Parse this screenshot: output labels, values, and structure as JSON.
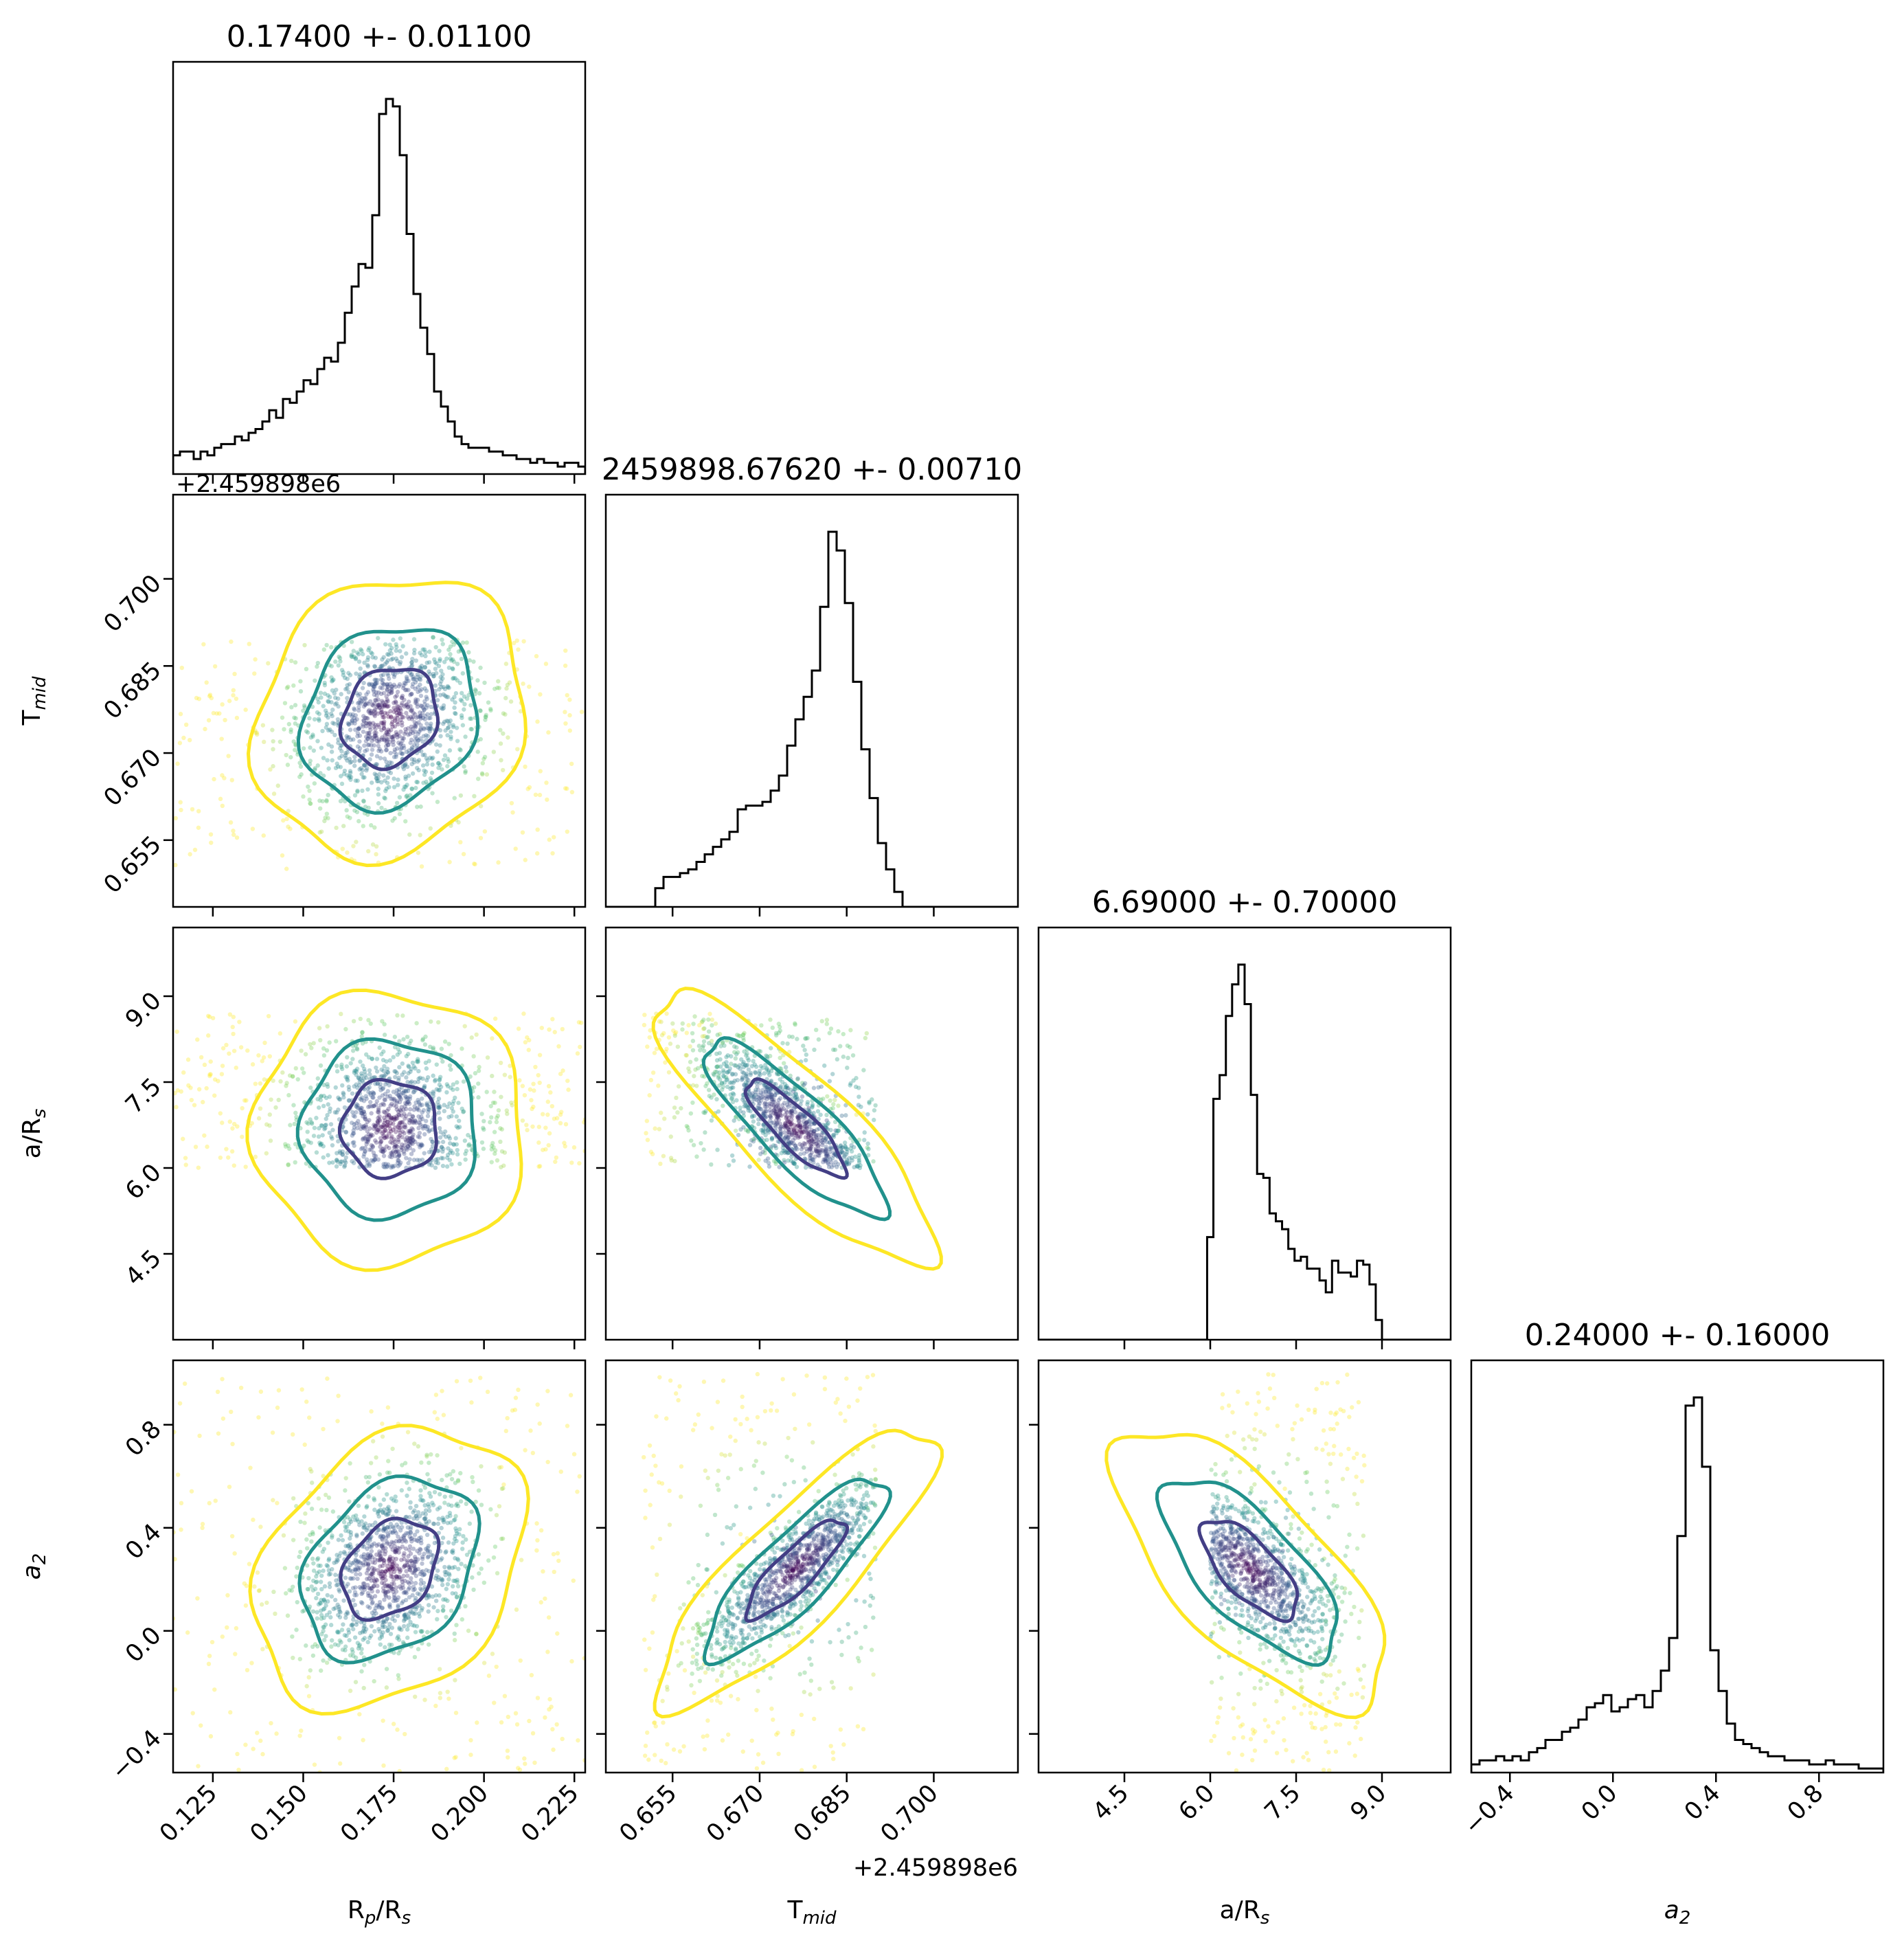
{
  "chart_data": {
    "type": "scatter",
    "subtype": "corner-plot",
    "parameters": [
      {
        "key": "rp",
        "label": "R",
        "label_sub": "p",
        "label_tail": "/R",
        "label_sub2": "s",
        "range": [
          0.114,
          0.228
        ],
        "ticks": [
          0.125,
          0.15,
          0.175,
          0.2,
          0.225
        ],
        "tick_labels": [
          "0.125",
          "0.150",
          "0.175",
          "0.200",
          "0.225"
        ],
        "title": "0.17400 +- 0.01100",
        "median": 0.174,
        "sigma": 0.011
      },
      {
        "key": "tmid",
        "label": "T",
        "label_sub": "mid",
        "label_tail": "",
        "label_sub2": "",
        "range": [
          0.6435,
          0.7145
        ],
        "ticks": [
          0.655,
          0.67,
          0.685,
          0.7
        ],
        "tick_labels": [
          "0.655",
          "0.670",
          "0.685",
          "0.700"
        ],
        "title": "2459898.67620 +- 0.00710",
        "median": 0.6762,
        "sigma": 0.0071,
        "offset_text": "+2.459898e6"
      },
      {
        "key": "ars",
        "label": "a/R",
        "label_sub": "s",
        "label_tail": "",
        "label_sub2": "",
        "range": [
          3.0,
          10.2
        ],
        "ticks": [
          4.5,
          6.0,
          7.5,
          9.0
        ],
        "tick_labels": [
          "4.5",
          "6.0",
          "7.5",
          "9.0"
        ],
        "title": "6.69000 +- 0.70000",
        "median": 6.69,
        "sigma": 0.7
      },
      {
        "key": "a2",
        "label": "a",
        "label_sub": "2",
        "label_tail": "",
        "label_sub2": "",
        "label_italic": true,
        "range": [
          -0.55,
          1.05
        ],
        "ticks": [
          -0.4,
          0.0,
          0.4,
          0.8
        ],
        "tick_labels": [
          "−0.4",
          "0.0",
          "0.4",
          "0.8"
        ],
        "title": "0.24000 +- 0.16000",
        "median": 0.24,
        "sigma": 0.16
      }
    ],
    "histograms": {
      "rp": {
        "bins": [
          0.114,
          0.228
        ],
        "counts": [
          5,
          6,
          6,
          4,
          6,
          5,
          7,
          8,
          8,
          10,
          9,
          11,
          12,
          14,
          17,
          15,
          20,
          19,
          22,
          25,
          24,
          28,
          31,
          30,
          35,
          43,
          50,
          56,
          55,
          69,
          96,
          100,
          98,
          85,
          64,
          48,
          39,
          32,
          22,
          18,
          14,
          10,
          8,
          7,
          7,
          7,
          6,
          6,
          5,
          5,
          4,
          4,
          3,
          4,
          3,
          3,
          2,
          3,
          3,
          2
        ]
      },
      "tmid": {
        "bins": [
          0.6435,
          0.7145
        ],
        "counts": [
          0,
          0,
          0,
          0,
          0,
          0,
          5,
          8,
          8,
          9,
          10,
          12,
          14,
          16,
          18,
          20,
          26,
          27,
          27,
          28,
          31,
          35,
          43,
          50,
          56,
          63,
          80,
          100,
          95,
          81,
          60,
          42,
          29,
          17,
          10,
          4,
          0,
          0,
          0,
          0,
          0,
          0,
          0,
          0,
          0,
          0,
          0,
          0,
          0,
          0
        ]
      },
      "ars": {
        "bins": [
          3.0,
          10.2
        ],
        "counts": [
          0,
          0,
          0,
          0,
          0,
          0,
          0,
          0,
          0,
          0,
          0,
          0,
          0,
          0,
          0,
          0,
          0,
          0,
          0,
          0,
          0,
          0,
          0,
          0,
          0,
          0,
          0,
          26,
          61,
          67,
          82,
          90,
          95,
          85,
          62,
          42,
          41,
          32,
          30,
          28,
          23,
          20,
          21,
          18,
          18,
          15,
          12,
          20,
          17,
          17,
          16,
          20,
          19,
          14,
          5,
          0,
          0,
          0,
          0,
          0,
          0,
          0,
          0,
          0,
          0,
          0
        ]
      },
      "a2": {
        "bins": [
          -0.55,
          1.05
        ],
        "counts": [
          2,
          3,
          3,
          4,
          3,
          4,
          3,
          5,
          6,
          8,
          8,
          10,
          11,
          13,
          16,
          17,
          19,
          15,
          16,
          18,
          19,
          16,
          20,
          25,
          33,
          58,
          90,
          92,
          75,
          30,
          20,
          12,
          8,
          7,
          6,
          5,
          4,
          4,
          3,
          3,
          3,
          2,
          2,
          3,
          2,
          2,
          2,
          1,
          1,
          1
        ]
      }
    },
    "covariance": {
      "means": [
        0.174,
        0.6762,
        6.69,
        0.24
      ],
      "sigmas": [
        0.011,
        0.0071,
        0.7,
        0.16
      ],
      "correlations": {
        "rp_tmid": 0.15,
        "rp_ars": 0.0,
        "rp_a2": 0.3,
        "tmid_ars": -0.85,
        "tmid_a2": 0.85,
        "ars_a2": -0.7
      }
    },
    "scatter_bounds": {
      "rp": [
        0.114,
        0.228
      ],
      "tmid": [
        0.65,
        0.69
      ],
      "ars": [
        6.0,
        8.7
      ],
      "a2": [
        -0.55,
        1.0
      ]
    },
    "contour_colors": [
      "#433e85",
      "#21918c",
      "#fde725"
    ],
    "point_colormap": [
      "#440154",
      "#3b528b",
      "#21918c",
      "#5ec962",
      "#fde725"
    ],
    "grid": false,
    "legend": "none"
  }
}
